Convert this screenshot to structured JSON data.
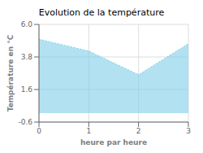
{
  "chart_data": {
    "type": "area",
    "title": "Evolution de la température",
    "x_label": "heure par heure",
    "y_label": "Température en °C",
    "x": [
      0,
      1,
      2,
      3
    ],
    "values": [
      5.0,
      4.2,
      2.6,
      4.7
    ],
    "xlim": [
      0,
      3
    ],
    "xticks": [
      0,
      1,
      2,
      3
    ],
    "ylim": [
      -0.6,
      6.0
    ],
    "yticks": [
      -0.6,
      1.6,
      3.8,
      {
        "value": 6,
        "label": "6.0"
      }
    ],
    "color": "#7ecfea",
    "line_style": "dotted",
    "grid": true
  }
}
